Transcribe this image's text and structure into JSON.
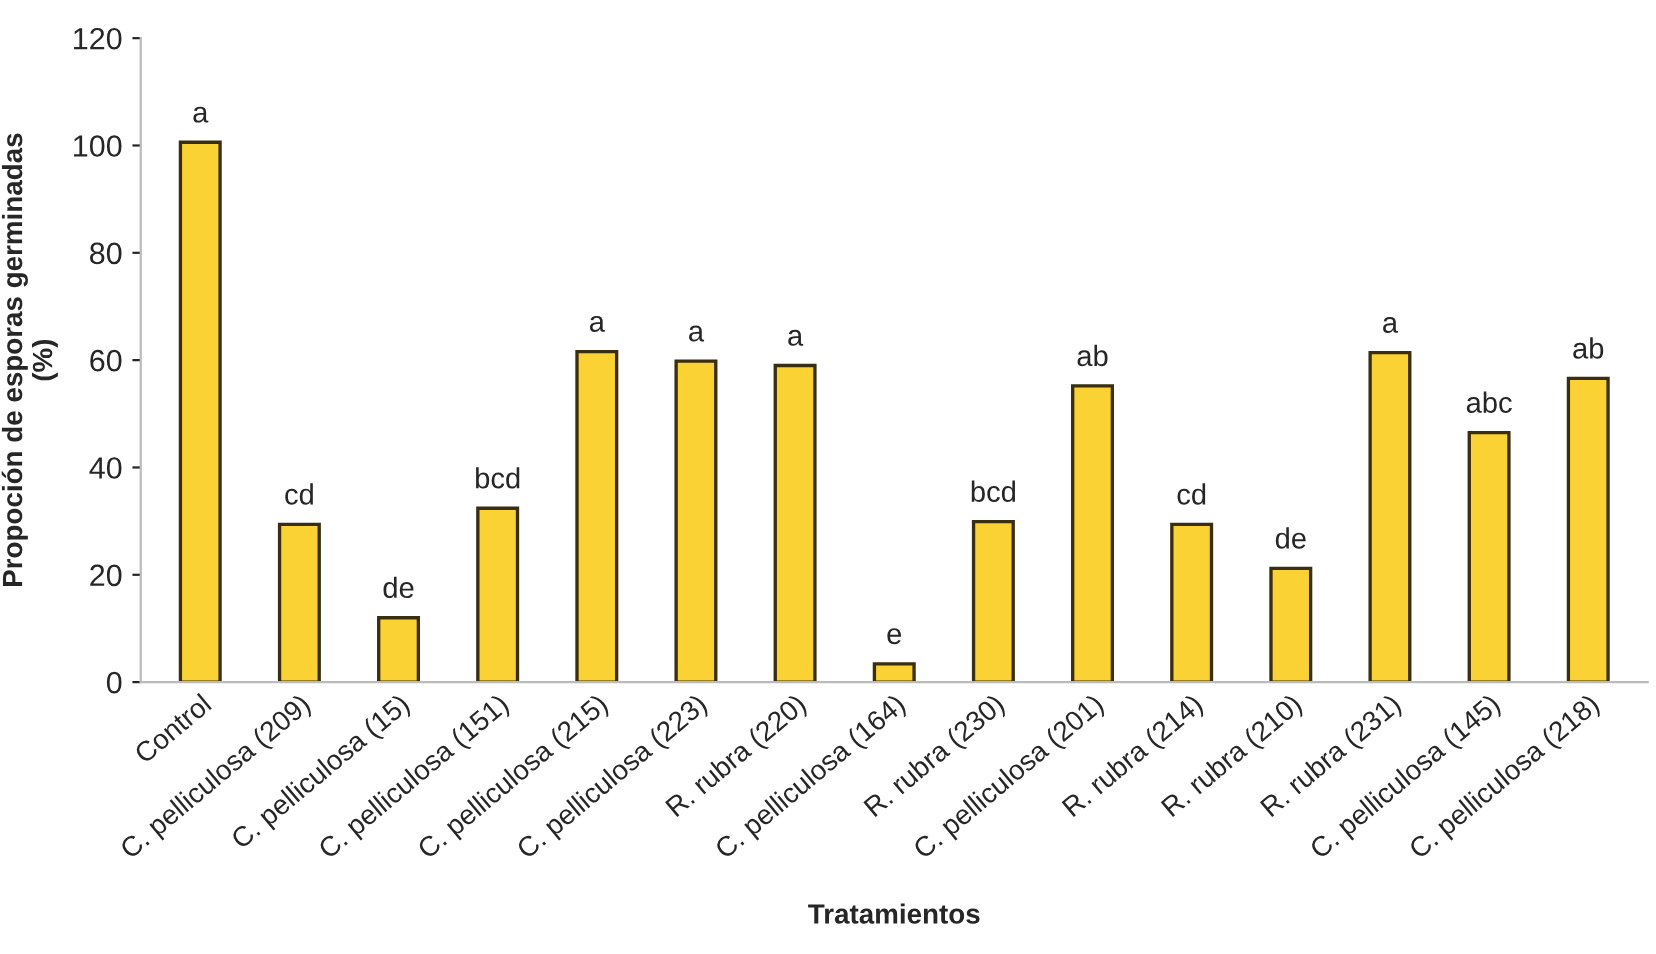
{
  "chart_data": {
    "type": "bar",
    "xlabel": "Tratamientos",
    "ylabel": "Propoción de esporas germinadas\n(%)",
    "categories": [
      "Control",
      "C. pelliculosa (209)",
      "C. pelliculosa (15)",
      "C. pelliculosa (151)",
      "C. pelliculosa (215)",
      "C. pelliculosa (223)",
      "R. rubra (220)",
      "C. pelliculosa (164)",
      "R. rubra (230)",
      "C. pelliculosa (201)",
      "R. rubra (214)",
      "R. rubra (210)",
      "R. rubra (231)",
      "C. pelliculosa (145)",
      "C. pelliculosa (218)"
    ],
    "values": [
      100.6,
      29.4,
      12,
      32.4,
      61.6,
      59.8,
      59,
      3.4,
      29.9,
      55.2,
      29.4,
      21.2,
      61.4,
      46.5,
      56.6
    ],
    "color": "#fbd234",
    "ylim": [
      0,
      120
    ],
    "yticks": [
      0,
      20,
      40,
      60,
      80,
      100,
      120
    ],
    "grid": false,
    "annotations": [
      {
        "text": "a",
        "x": "Control",
        "y": 100.6
      },
      {
        "text": "cd",
        "x": "C. pelliculosa (209)",
        "y": 29.4
      },
      {
        "text": "de",
        "x": "C. pelliculosa (15)",
        "y": 12
      },
      {
        "text": "bcd",
        "x": "C. pelliculosa (151)",
        "y": 32.4
      },
      {
        "text": "a",
        "x": "C. pelliculosa (215)",
        "y": 61.6
      },
      {
        "text": "a",
        "x": "C. pelliculosa (223)",
        "y": 59.8
      },
      {
        "text": "a",
        "x": "R. rubra (220)",
        "y": 59
      },
      {
        "text": "e",
        "x": "C. pelliculosa (164)",
        "y": 3.4
      },
      {
        "text": "bcd",
        "x": "R. rubra (230)",
        "y": 29.9
      },
      {
        "text": "ab",
        "x": "C. pelliculosa (201)",
        "y": 55.2
      },
      {
        "text": "cd",
        "x": "R. rubra (214)",
        "y": 29.4
      },
      {
        "text": "de",
        "x": "R. rubra (210)",
        "y": 21.2
      },
      {
        "text": "a",
        "x": "R. rubra (231)",
        "y": 61.4
      },
      {
        "text": "abc",
        "x": "C. pelliculosa (145)",
        "y": 46.5
      },
      {
        "text": "ab",
        "x": "C. pelliculosa (218)",
        "y": 56.6
      }
    ]
  }
}
